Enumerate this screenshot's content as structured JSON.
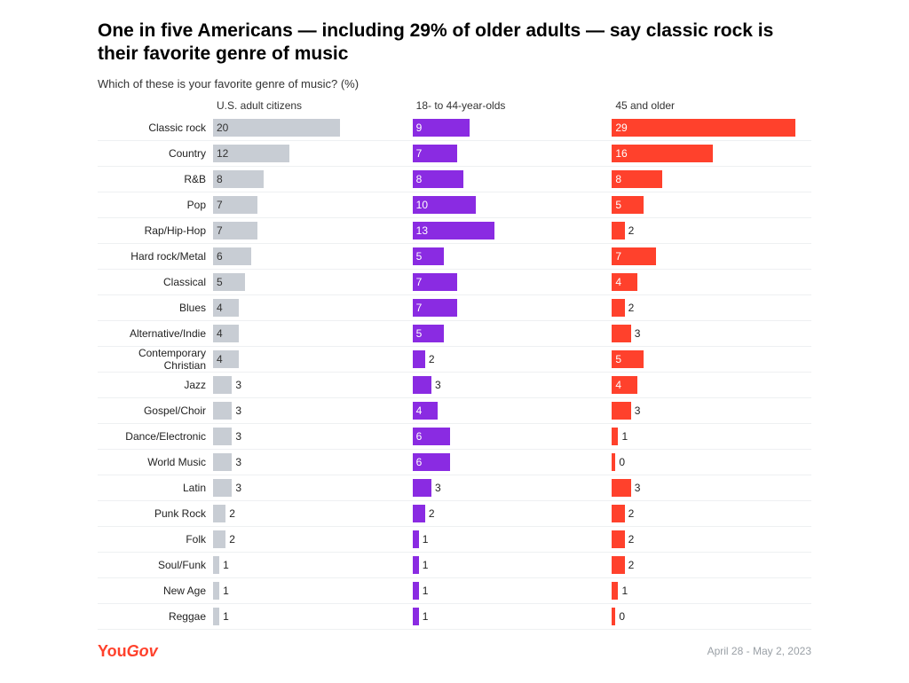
{
  "title": "One in five Americans — including 29% of older adults — say classic rock is their favorite genre of music",
  "subtitle": "Which of these is your favorite genre of music? (%)",
  "columns": [
    {
      "label": "U.S. adult citizens",
      "color": "#c8cdd4"
    },
    {
      "label": "18- to 44-year-olds",
      "color": "#8a2be2"
    },
    {
      "label": "45 and older",
      "color": "#ff412c"
    }
  ],
  "max_value": 29,
  "label_text_color_inside": "#ffffff",
  "label_text_color_outside": "#222222",
  "row_border_color": "#eef0f2",
  "rows": [
    {
      "genre": "Classic rock",
      "values": [
        20,
        9,
        29
      ]
    },
    {
      "genre": "Country",
      "values": [
        12,
        7,
        16
      ]
    },
    {
      "genre": "R&B",
      "values": [
        8,
        8,
        8
      ]
    },
    {
      "genre": "Pop",
      "values": [
        7,
        10,
        5
      ]
    },
    {
      "genre": "Rap/Hip-Hop",
      "values": [
        7,
        13,
        2
      ]
    },
    {
      "genre": "Hard rock/Metal",
      "values": [
        6,
        5,
        7
      ]
    },
    {
      "genre": "Classical",
      "values": [
        5,
        7,
        4
      ]
    },
    {
      "genre": "Blues",
      "values": [
        4,
        7,
        2
      ]
    },
    {
      "genre": "Alternative/Indie",
      "values": [
        4,
        5,
        3
      ]
    },
    {
      "genre": "Contemporary Christian",
      "values": [
        4,
        2,
        5
      ]
    },
    {
      "genre": "Jazz",
      "values": [
        3,
        3,
        4
      ]
    },
    {
      "genre": "Gospel/Choir",
      "values": [
        3,
        4,
        3
      ]
    },
    {
      "genre": "Dance/Electronic",
      "values": [
        3,
        6,
        1
      ]
    },
    {
      "genre": "World Music",
      "values": [
        3,
        6,
        0
      ]
    },
    {
      "genre": "Latin",
      "values": [
        3,
        3,
        3
      ]
    },
    {
      "genre": "Punk Rock",
      "values": [
        2,
        2,
        2
      ]
    },
    {
      "genre": "Folk",
      "values": [
        2,
        1,
        2
      ]
    },
    {
      "genre": "Soul/Funk",
      "values": [
        1,
        1,
        2
      ]
    },
    {
      "genre": "New Age",
      "values": [
        1,
        1,
        1
      ]
    },
    {
      "genre": "Reggae",
      "values": [
        1,
        1,
        0
      ]
    }
  ],
  "logo": {
    "part1": "You",
    "part2": "Gov",
    "color": "#ff412c"
  },
  "date_text": "April 28 - May 2, 2023",
  "footer_text_color": "#9aa0a6",
  "inside_label_threshold": 4
}
